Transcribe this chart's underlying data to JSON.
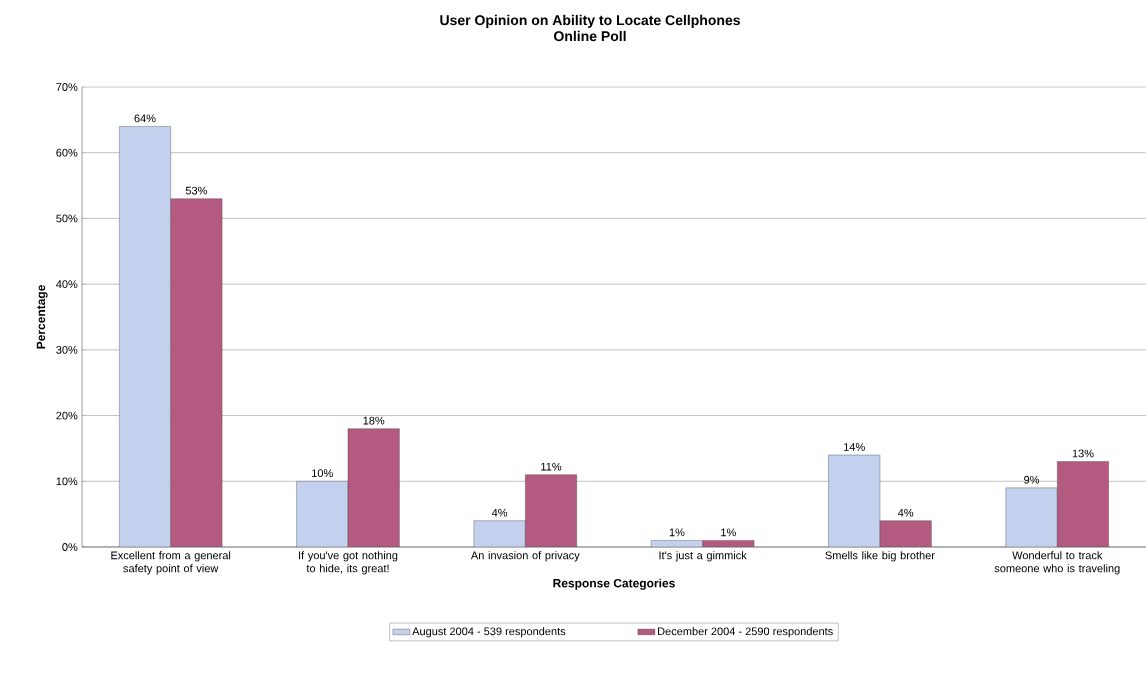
{
  "chart_data": {
    "type": "bar",
    "title": "User Opinion on Ability to Locate Cellphones",
    "subtitle": "Online Poll",
    "xlabel": "Response Categories",
    "ylabel": "Percentage",
    "categories": [
      "Excellent from a general safety point of view",
      "If you've got nothing to hide, its great!",
      "An invasion of privacy",
      "It's just a gimmick",
      "Smells like big brother",
      "Wonderful to track someone who is traveling"
    ],
    "series": [
      {
        "name": "August 2004 - 539 respondents",
        "color": "#c3d1ee",
        "values": [
          64,
          10,
          4,
          1,
          14,
          9
        ],
        "value_labels": [
          "64%",
          "10%",
          "4%",
          "1%",
          "14%",
          "9%"
        ]
      },
      {
        "name": "December 2004 - 2590 respondents",
        "color": "#b45a80",
        "values": [
          53,
          18,
          11,
          1,
          4,
          13
        ],
        "value_labels": [
          "53%",
          "18%",
          "11%",
          "1%",
          "4%",
          "13%"
        ]
      }
    ],
    "ylim": [
      0,
      70
    ],
    "yticks": [
      {
        "value": 0,
        "label": "0%"
      },
      {
        "value": 10,
        "label": "10%"
      },
      {
        "value": 20,
        "label": "20%"
      },
      {
        "value": 30,
        "label": "30%"
      },
      {
        "value": 40,
        "label": "40%"
      },
      {
        "value": 50,
        "label": "50%"
      },
      {
        "value": 60,
        "label": "60%"
      },
      {
        "value": 70,
        "label": "70%"
      }
    ],
    "grid": "y",
    "legend": "bottom"
  }
}
